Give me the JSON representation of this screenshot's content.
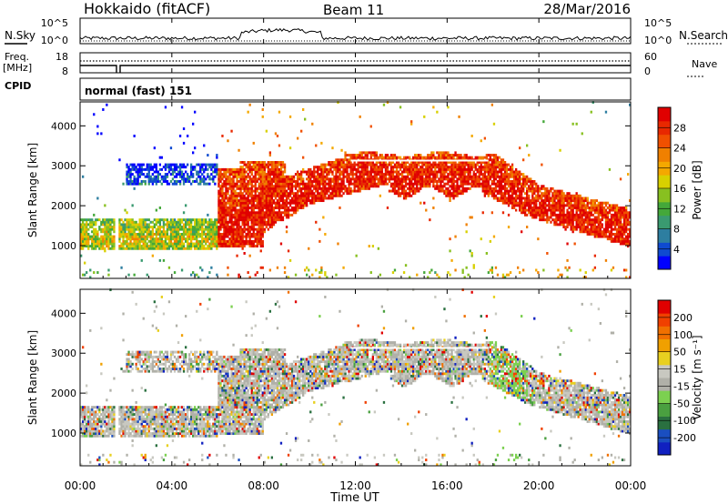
{
  "header": {
    "station": "Hokkaido (fitACF)",
    "beam": "Beam 11",
    "date": "28/Mar/2016"
  },
  "noise_panel": {
    "left_label": "N.Sky",
    "right_label": "N.Search",
    "left_ticks": [
      "10^5",
      "10^0"
    ],
    "right_ticks": [
      "10^5",
      "10^0"
    ]
  },
  "freq_panel": {
    "left_label_line1": "Freq.",
    "left_label_line2": "[MHz]",
    "right_label": "Nave",
    "left_ticks": [
      "18",
      "8"
    ],
    "right_ticks": [
      "60",
      "0"
    ]
  },
  "cpid_panel": {
    "label": "CPID",
    "mode_text": "normal (fast) 151"
  },
  "chart_data": [
    {
      "type": "heatmap",
      "name": "power",
      "ylabel": "Slant Range [km]",
      "yticks": [
        1000,
        2000,
        3000,
        4000
      ],
      "ylim": [
        180,
        4600
      ],
      "xlim_hours": [
        0,
        24
      ],
      "colorbar_label": "Power [dB]",
      "colorbar_ticks": [
        "28",
        "24",
        "20",
        "16",
        "12",
        "8",
        "4"
      ],
      "colors": [
        "#0000ff",
        "#0f4ad0",
        "#2d7ea0",
        "#3a9a70",
        "#44a83a",
        "#88c020",
        "#d8d000",
        "#f4a800",
        "#f08000",
        "#f05000",
        "#e82800",
        "#e00000"
      ],
      "echo_bands": [
        {
          "t0": 0.0,
          "t1": 6.0,
          "r_low": 900,
          "r_high": 1650,
          "power_center": 0.45
        },
        {
          "t0": 2.0,
          "t1": 6.0,
          "r_low": 2500,
          "r_high": 3050,
          "power_center": 0.3
        },
        {
          "t0": 6.0,
          "t1": 10.0,
          "r_low": 950,
          "r_high": 3300,
          "power_center": 0.8
        },
        {
          "t0": 10.0,
          "t1": 19.5,
          "r_low": 1900,
          "r_high": 3400,
          "power_center": 0.85
        },
        {
          "t0": 19.5,
          "t1": 24.0,
          "r_low": 900,
          "r_high": 2600,
          "power_center": 0.8
        }
      ]
    },
    {
      "type": "heatmap",
      "name": "velocity",
      "ylabel": "Slant Range [km]",
      "yticks": [
        1000,
        2000,
        3000,
        4000
      ],
      "ylim": [
        180,
        4600
      ],
      "xlim_hours": [
        0,
        24
      ],
      "colorbar_label": "Velocity [m s⁻¹]",
      "colorbar_ticks": [
        "200",
        "100",
        "50",
        "15",
        "-15",
        "-50",
        "-100",
        "-200"
      ],
      "colors": [
        "#1020c0",
        "#1a4ec0",
        "#2a7040",
        "#4aa040",
        "#7cd050",
        "#b0b0a8",
        "#c8c8c0",
        "#e8d020",
        "#f0a000",
        "#f07000",
        "#f04000",
        "#e00000"
      ]
    }
  ],
  "xaxis": {
    "label": "Time UT",
    "ticks": [
      "00:00",
      "04:00",
      "08:00",
      "12:00",
      "16:00",
      "20:00",
      "00:00"
    ]
  }
}
